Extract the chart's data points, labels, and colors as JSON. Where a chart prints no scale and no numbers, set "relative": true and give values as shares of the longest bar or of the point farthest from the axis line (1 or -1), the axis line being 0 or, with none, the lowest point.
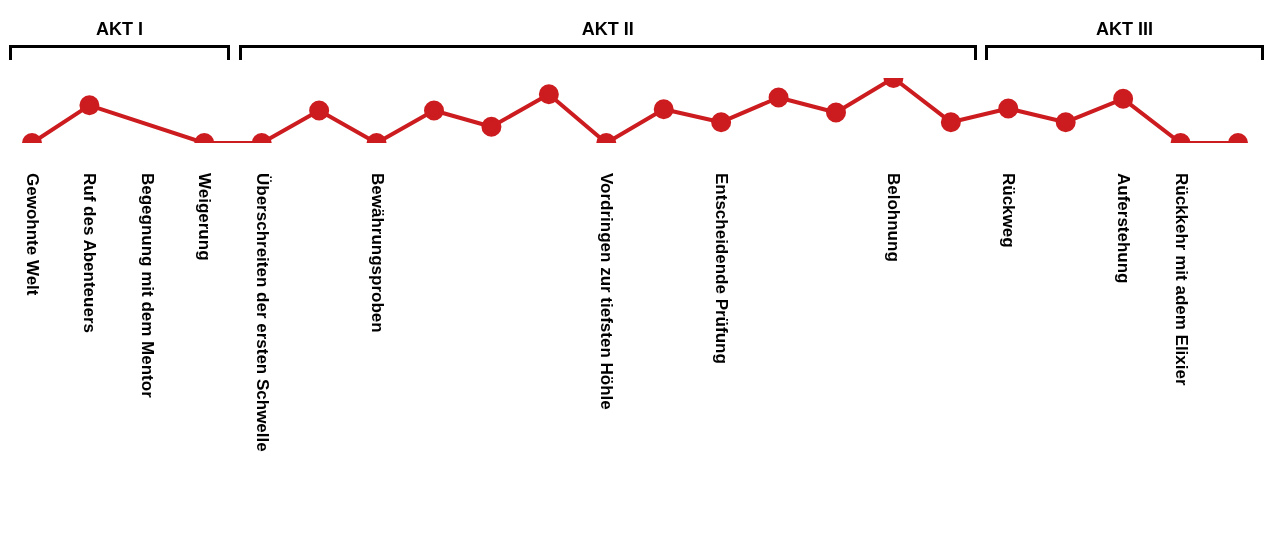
{
  "chart_data": {
    "type": "line",
    "relative": true,
    "categories": [
      "Gewohnte Welt",
      "Ruf des Abenteuers",
      "Begegnung mit dem Mentor",
      "Weigerung",
      "Überschreiten der ersten Schwelle",
      null,
      "Bewährungsproben",
      null,
      null,
      null,
      "Vordringen zur tiefsten Höhle",
      null,
      "Entscheidende Prüfung",
      null,
      null,
      "Belohnung",
      null,
      "Rückweg",
      null,
      "Auferstehung",
      "Rückkehr mit adem Elixier",
      null
    ],
    "series": [
      {
        "color": "#cc1c1f",
        "values": [
          0,
          0.58,
          null,
          0,
          0,
          0.5,
          0,
          0.5,
          0.25,
          0.75,
          0,
          0.52,
          0.32,
          0.7,
          0.47,
          1,
          0.32,
          0.53,
          0.32,
          0.68,
          0,
          0
        ]
      }
    ],
    "annotations": [
      "AKT I",
      "AKT II",
      "AKT III"
    ],
    "marker": "circle",
    "line_style": "solid",
    "grid": false,
    "legend": false
  }
}
